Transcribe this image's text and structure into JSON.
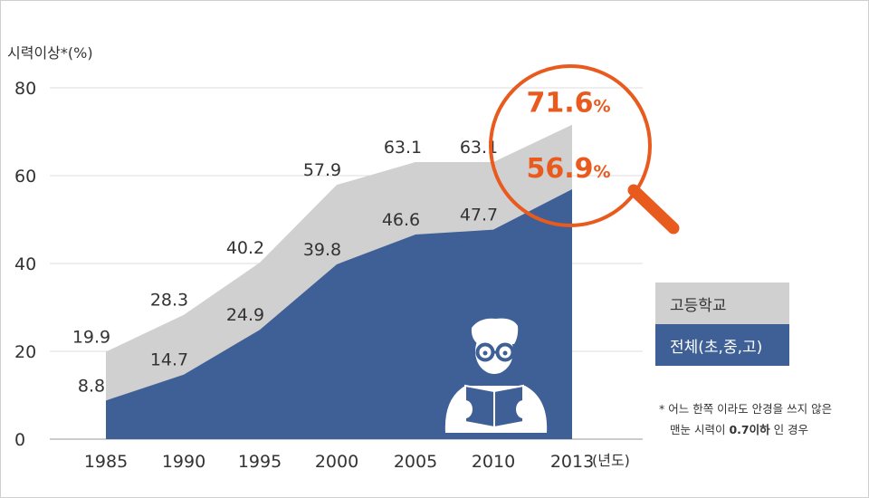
{
  "chart_data": {
    "type": "area",
    "ylabel": "시력이상*(%)",
    "xlabel": "(년도)",
    "ylim": [
      0,
      80
    ],
    "yticks": [
      0,
      20,
      40,
      60,
      80
    ],
    "categories": [
      "1985",
      "1990",
      "1995",
      "2000",
      "2005",
      "2010",
      "2013"
    ],
    "series": [
      {
        "name": "고등학교",
        "values": [
          19.9,
          28.3,
          40.2,
          57.9,
          63.1,
          63.1,
          71.6
        ],
        "labels": [
          "19.9",
          "28.3",
          "40.2",
          "57.9",
          "63.1",
          "63.1",
          "71.6%"
        ],
        "color": "#d0d0d0"
      },
      {
        "name": "전체(초,중,고)",
        "values": [
          8.8,
          14.7,
          24.9,
          39.8,
          46.6,
          47.7,
          56.9
        ],
        "labels": [
          "8.8",
          "14.7",
          "24.9",
          "39.8",
          "46.6",
          "47.7",
          "56.9%"
        ],
        "color": "#3f6096"
      }
    ],
    "grid": true,
    "legend_placement": "right",
    "highlight_color": "#e85a1d",
    "footnote": {
      "line1": "* 어느 한쪽 이라도 안경을 쓰지 않은",
      "line2_prefix": "맨눈 시력이 ",
      "line2_bold": "0.7이하",
      "line2_suffix": " 인 경우"
    }
  }
}
